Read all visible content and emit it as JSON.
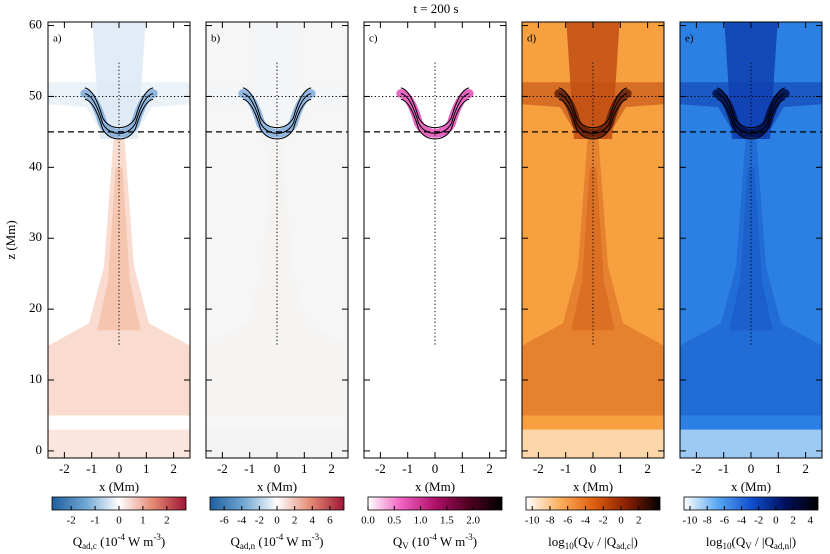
{
  "chart_data": {
    "type": "heatmap",
    "title": "t = 200 s",
    "ylabel": "z (Mm)",
    "xlabel": "x (Mm)",
    "xlim": [
      -2.6,
      2.6
    ],
    "xticks": [
      -2,
      -1,
      0,
      1,
      2
    ],
    "ylim": [
      -1,
      60.5
    ],
    "yticks": [
      0,
      10,
      20,
      30,
      40,
      50,
      60
    ],
    "lines": {
      "dotted_z": 50,
      "dashed_z": 45,
      "vertical_x": 0,
      "vertical_z": [
        15,
        55
      ]
    },
    "panels": [
      {
        "label": "a)",
        "field": {
          "background": "#ffffff",
          "bottom": "#fbe6de",
          "plume": "#f4bfa8",
          "top": "#dde9f4"
        },
        "contour": "#7aa8d8",
        "colorbar": {
          "lim": [
            -2.8,
            2.8
          ],
          "ticks": [
            -2,
            -1,
            0,
            1,
            2
          ],
          "colors": [
            "#1f5fa0",
            "#6fa6d2",
            "#ffffff",
            "#e58a74",
            "#9e1535"
          ],
          "label": [
            {
              "text": "Q"
            },
            {
              "text": "ad,c",
              "sub": true
            },
            {
              "text": " (10"
            },
            {
              "text": "-4",
              "sup": true
            },
            {
              "text": " W m"
            },
            {
              "text": "-3",
              "sup": true
            },
            {
              "text": ")"
            }
          ]
        }
      },
      {
        "label": "b)",
        "field": {
          "background": "#f6f6f6",
          "bottom": "#f3f3f3",
          "plume": "#f4f2f1",
          "top": "#f3f5f7"
        },
        "contour": "#7aa8d8",
        "colorbar": {
          "lim": [
            -7.6,
            7.6
          ],
          "ticks": [
            -6,
            -4,
            -2,
            0,
            2,
            4,
            6
          ],
          "colors": [
            "#1f5fa0",
            "#6fa6d2",
            "#ffffff",
            "#e58a74",
            "#9e1535"
          ],
          "label": [
            {
              "text": "Q"
            },
            {
              "text": "ad,n",
              "sub": true
            },
            {
              "text": " (10"
            },
            {
              "text": "-4",
              "sup": true
            },
            {
              "text": " W m"
            },
            {
              "text": "-3",
              "sup": true
            },
            {
              "text": ")"
            }
          ]
        }
      },
      {
        "label": "c)",
        "field": {
          "background": "#ffffff",
          "bottom": "#ffffff",
          "plume": "#ffffff",
          "top": "#ffffff"
        },
        "contour": "#e040b0",
        "colorbar": {
          "lim": [
            0,
            2.55
          ],
          "ticks": [
            {
              "value": 0,
              "label": "0.0"
            },
            0.5,
            {
              "value": 1,
              "label": "1.0"
            },
            1.5,
            {
              "value": 2,
              "label": "2.0"
            }
          ],
          "colors": [
            "#ffffff",
            "#f060c0",
            "#b0106a",
            "#500020",
            "#000000"
          ],
          "label": [
            {
              "text": "Q"
            },
            {
              "text": "V",
              "sub": true
            },
            {
              "text": " (10"
            },
            {
              "text": "-4",
              "sup": true
            },
            {
              "text": " W m"
            },
            {
              "text": "-3",
              "sup": true
            },
            {
              "text": ")"
            }
          ]
        }
      },
      {
        "label": "d)",
        "field": {
          "background": "#f6a040",
          "bottom": "#fbd6a8",
          "plume": "#d86a20",
          "top": "#c24e14"
        },
        "contour": "#5a1a08",
        "colorbar": {
          "lim": [
            -10.7,
            4.4
          ],
          "ticks": [
            -10,
            -8,
            -6,
            -4,
            -2,
            0,
            2
          ],
          "colors": [
            "#ffffff",
            "#fbb060",
            "#e06010",
            "#8a2000",
            "#000000"
          ],
          "label": [
            {
              "text": "log"
            },
            {
              "text": "10",
              "sub": true
            },
            {
              "text": "(Q"
            },
            {
              "text": "V",
              "sub": true
            },
            {
              "text": " / |Q"
            },
            {
              "text": "ad,c",
              "sub": true
            },
            {
              "text": "|)"
            }
          ]
        }
      },
      {
        "label": "e)",
        "field": {
          "background": "#2c80e4",
          "bottom": "#9ccaf4",
          "plume": "#1a5cc8",
          "top": "#1040b0"
        },
        "contour": "#000a40",
        "colorbar": {
          "lim": [
            -10.7,
            4.9
          ],
          "ticks": [
            -10,
            -8,
            -6,
            -4,
            -2,
            0,
            2,
            4
          ],
          "colors": [
            "#ffffff",
            "#58a8f0",
            "#1050d0",
            "#001060",
            "#000000"
          ],
          "label": [
            {
              "text": "log"
            },
            {
              "text": "10",
              "sub": true
            },
            {
              "text": "(Q"
            },
            {
              "text": "V",
              "sub": true
            },
            {
              "text": " / |Q"
            },
            {
              "text": "ad,n",
              "sub": true
            },
            {
              "text": "|)"
            }
          ]
        }
      }
    ]
  }
}
